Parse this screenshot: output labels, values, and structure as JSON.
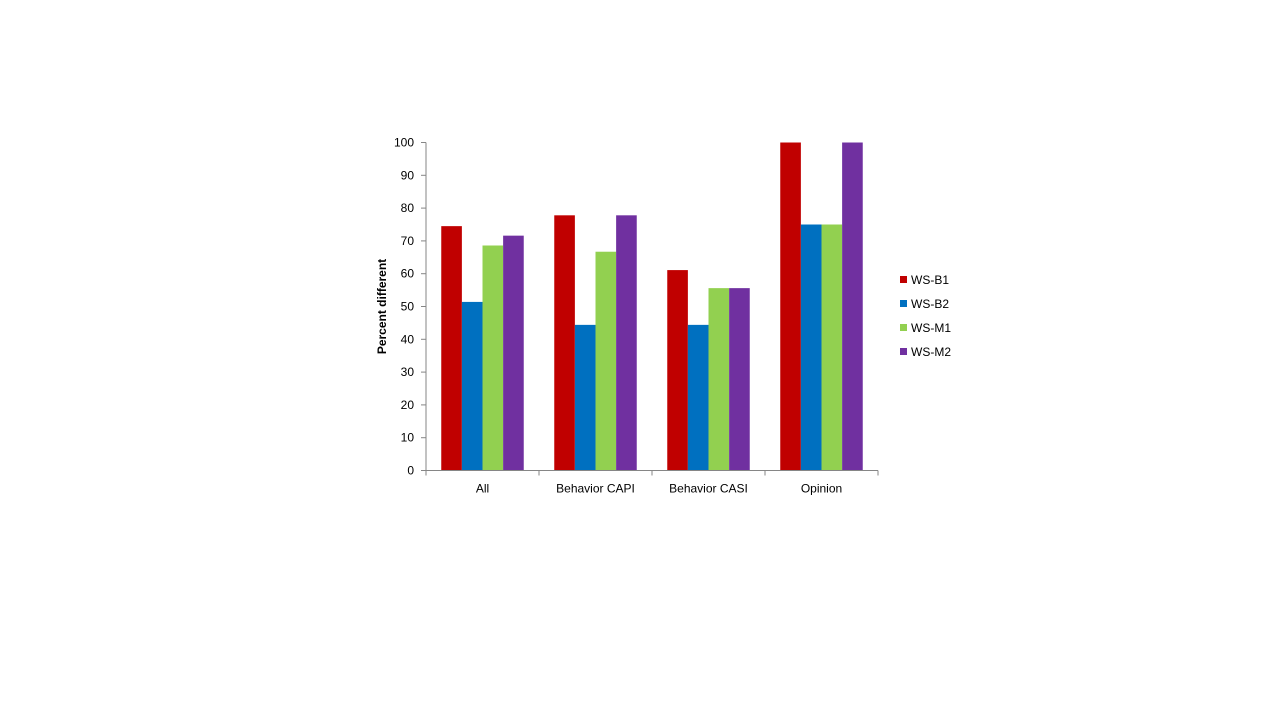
{
  "chart_data": {
    "type": "bar",
    "title": "",
    "xlabel": "",
    "ylabel": "Percent different",
    "ylim": [
      0,
      100
    ],
    "yticks": [
      0,
      10,
      20,
      30,
      40,
      50,
      60,
      70,
      80,
      90,
      100
    ],
    "categories": [
      "All",
      "Behavior CAPI",
      "Behavior CASI",
      "Opinion"
    ],
    "series": [
      {
        "name": "WS-B1",
        "color": "#c00000",
        "values": [
          74.5,
          77.8,
          61.1,
          100
        ]
      },
      {
        "name": "WS-B2",
        "color": "#0070c0",
        "values": [
          51.4,
          44.4,
          44.4,
          75
        ]
      },
      {
        "name": "WS-M1",
        "color": "#92d050",
        "values": [
          68.6,
          66.7,
          55.6,
          75
        ]
      },
      {
        "name": "WS-M2",
        "color": "#7030a0",
        "values": [
          71.6,
          77.8,
          55.6,
          100
        ]
      }
    ],
    "grid": false,
    "legend_position": "right"
  }
}
